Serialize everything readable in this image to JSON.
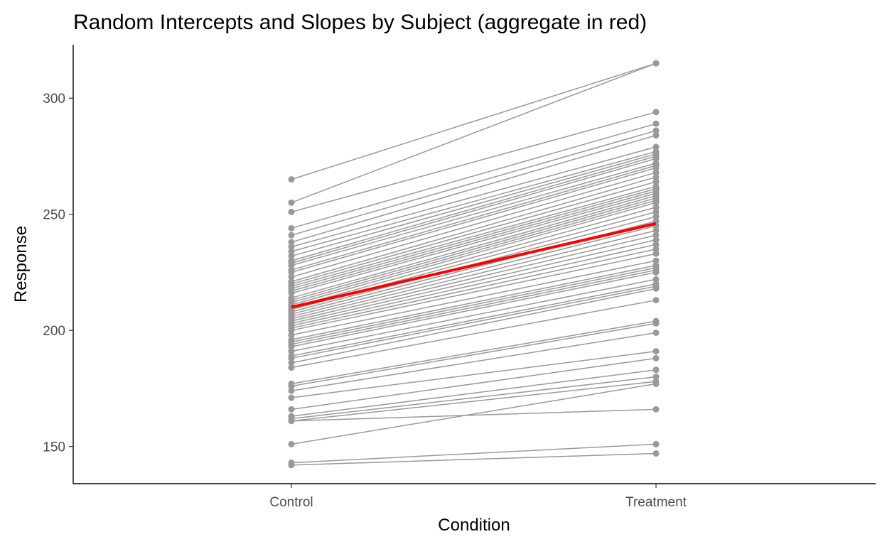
{
  "chart_data": {
    "type": "line",
    "title": "Random Intercepts and Slopes by Subject (aggregate in red)",
    "xlabel": "Condition",
    "ylabel": "Response",
    "categories": [
      "Control",
      "Treatment"
    ],
    "ylim": [
      134,
      323
    ],
    "yticks": [
      150,
      200,
      250,
      300
    ],
    "grid": false,
    "colors": {
      "subject": "#999999",
      "aggregate": "#ff0000"
    },
    "subjects": [
      [
        265,
        315
      ],
      [
        255,
        315
      ],
      [
        251,
        294
      ],
      [
        244,
        289
      ],
      [
        241,
        286
      ],
      [
        238,
        284
      ],
      [
        236,
        279
      ],
      [
        234,
        277
      ],
      [
        232,
        276
      ],
      [
        230,
        275
      ],
      [
        229,
        274
      ],
      [
        228,
        272
      ],
      [
        226,
        271
      ],
      [
        225,
        270
      ],
      [
        223,
        268
      ],
      [
        221,
        266
      ],
      [
        220,
        264
      ],
      [
        219,
        262
      ],
      [
        218,
        261
      ],
      [
        217,
        260
      ],
      [
        216,
        259
      ],
      [
        214,
        258
      ],
      [
        213,
        257
      ],
      [
        212,
        256
      ],
      [
        211,
        255
      ],
      [
        210,
        253
      ],
      [
        209,
        251
      ],
      [
        208,
        249
      ],
      [
        207,
        247
      ],
      [
        206,
        245
      ],
      [
        205,
        243
      ],
      [
        204,
        241
      ],
      [
        203,
        239
      ],
      [
        202,
        237
      ],
      [
        201,
        235
      ],
      [
        200,
        233
      ],
      [
        198,
        230
      ],
      [
        196,
        228
      ],
      [
        195,
        227
      ],
      [
        194,
        226
      ],
      [
        193,
        225
      ],
      [
        191,
        222
      ],
      [
        189,
        220
      ],
      [
        188,
        219
      ],
      [
        186,
        218
      ],
      [
        184,
        213
      ],
      [
        177,
        204
      ],
      [
        176,
        203
      ],
      [
        174,
        199
      ],
      [
        171,
        191
      ],
      [
        166,
        188
      ],
      [
        163,
        183
      ],
      [
        162,
        180
      ],
      [
        161,
        178
      ],
      [
        161,
        166
      ],
      [
        151,
        177
      ],
      [
        143,
        151
      ],
      [
        142,
        147
      ]
    ],
    "aggregate": [
      210,
      246
    ]
  }
}
